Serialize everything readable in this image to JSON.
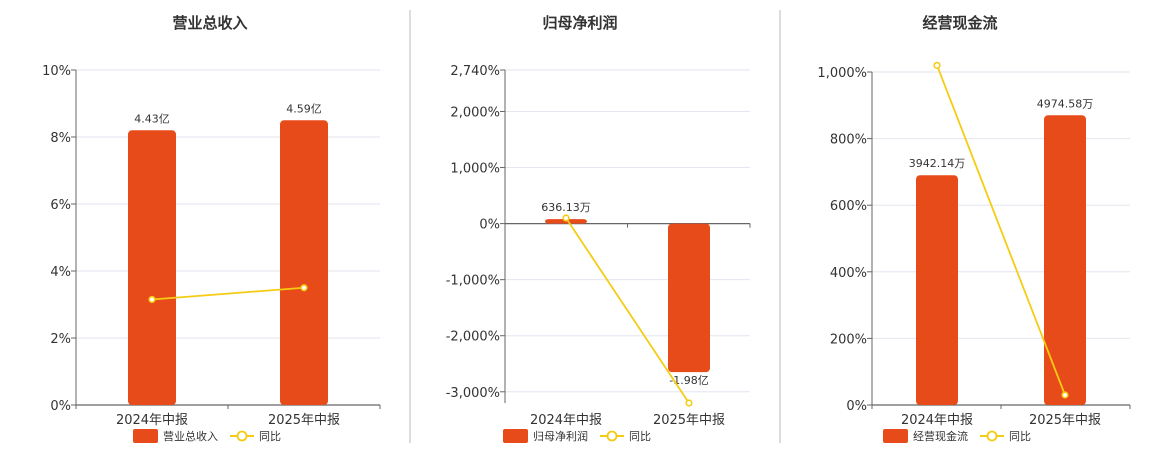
{
  "colors": {
    "bar": "#E84B1A",
    "line": "#F5CC14",
    "grid": "#E3E6F0",
    "axis": "#666666",
    "divider": "#BBBBBB"
  },
  "chart_data": [
    {
      "type": "bar",
      "title": "营业总收入",
      "categories": [
        "2024年中报",
        "2025年中报"
      ],
      "ylim": [
        0,
        10
      ],
      "yticks": [
        "0%",
        "2%",
        "4%",
        "6%",
        "8%",
        "10%"
      ],
      "yticks_values": [
        0,
        2,
        4,
        6,
        8,
        10
      ],
      "series": [
        {
          "name": "营业总收入",
          "kind": "bar",
          "values": [
            8.2,
            8.5
          ],
          "labels": [
            "4.43亿",
            "4.59亿"
          ]
        },
        {
          "name": "同比",
          "kind": "line",
          "values": [
            3.15,
            3.5
          ]
        }
      ],
      "grid": true,
      "legend": "bottom-center"
    },
    {
      "type": "bar",
      "title": "归母净利润",
      "categories": [
        "2024年中报",
        "2025年中报"
      ],
      "ylim": [
        -3200,
        2740
      ],
      "yticks": [
        "-3,000%",
        "-2,000%",
        "-1,000%",
        "0%",
        "1,000%",
        "2,000%",
        "2,740%"
      ],
      "yticks_values": [
        -3000,
        -2000,
        -1000,
        0,
        1000,
        2000,
        2740
      ],
      "series": [
        {
          "name": "归母净利润",
          "kind": "bar",
          "values": [
            80,
            -2650
          ],
          "labels": [
            "636.13万",
            "-1.98亿"
          ]
        },
        {
          "name": "同比",
          "kind": "line",
          "values": [
            100,
            -3200
          ]
        }
      ],
      "grid": true,
      "legend": "bottom-center"
    },
    {
      "type": "bar",
      "title": "经营现金流",
      "categories": [
        "2024年中报",
        "2025年中报"
      ],
      "ylim": [
        0,
        1000
      ],
      "yticks": [
        "0%",
        "200%",
        "400%",
        "600%",
        "800%",
        "1,000%"
      ],
      "yticks_values": [
        0,
        200,
        400,
        600,
        800,
        1000
      ],
      "series": [
        {
          "name": "经营现金流",
          "kind": "bar",
          "values": [
            690,
            870
          ],
          "labels": [
            "3942.14万",
            "4974.58万"
          ]
        },
        {
          "name": "同比",
          "kind": "line",
          "values": [
            1020,
            30
          ]
        }
      ],
      "grid": true,
      "legend": "bottom-center"
    }
  ]
}
